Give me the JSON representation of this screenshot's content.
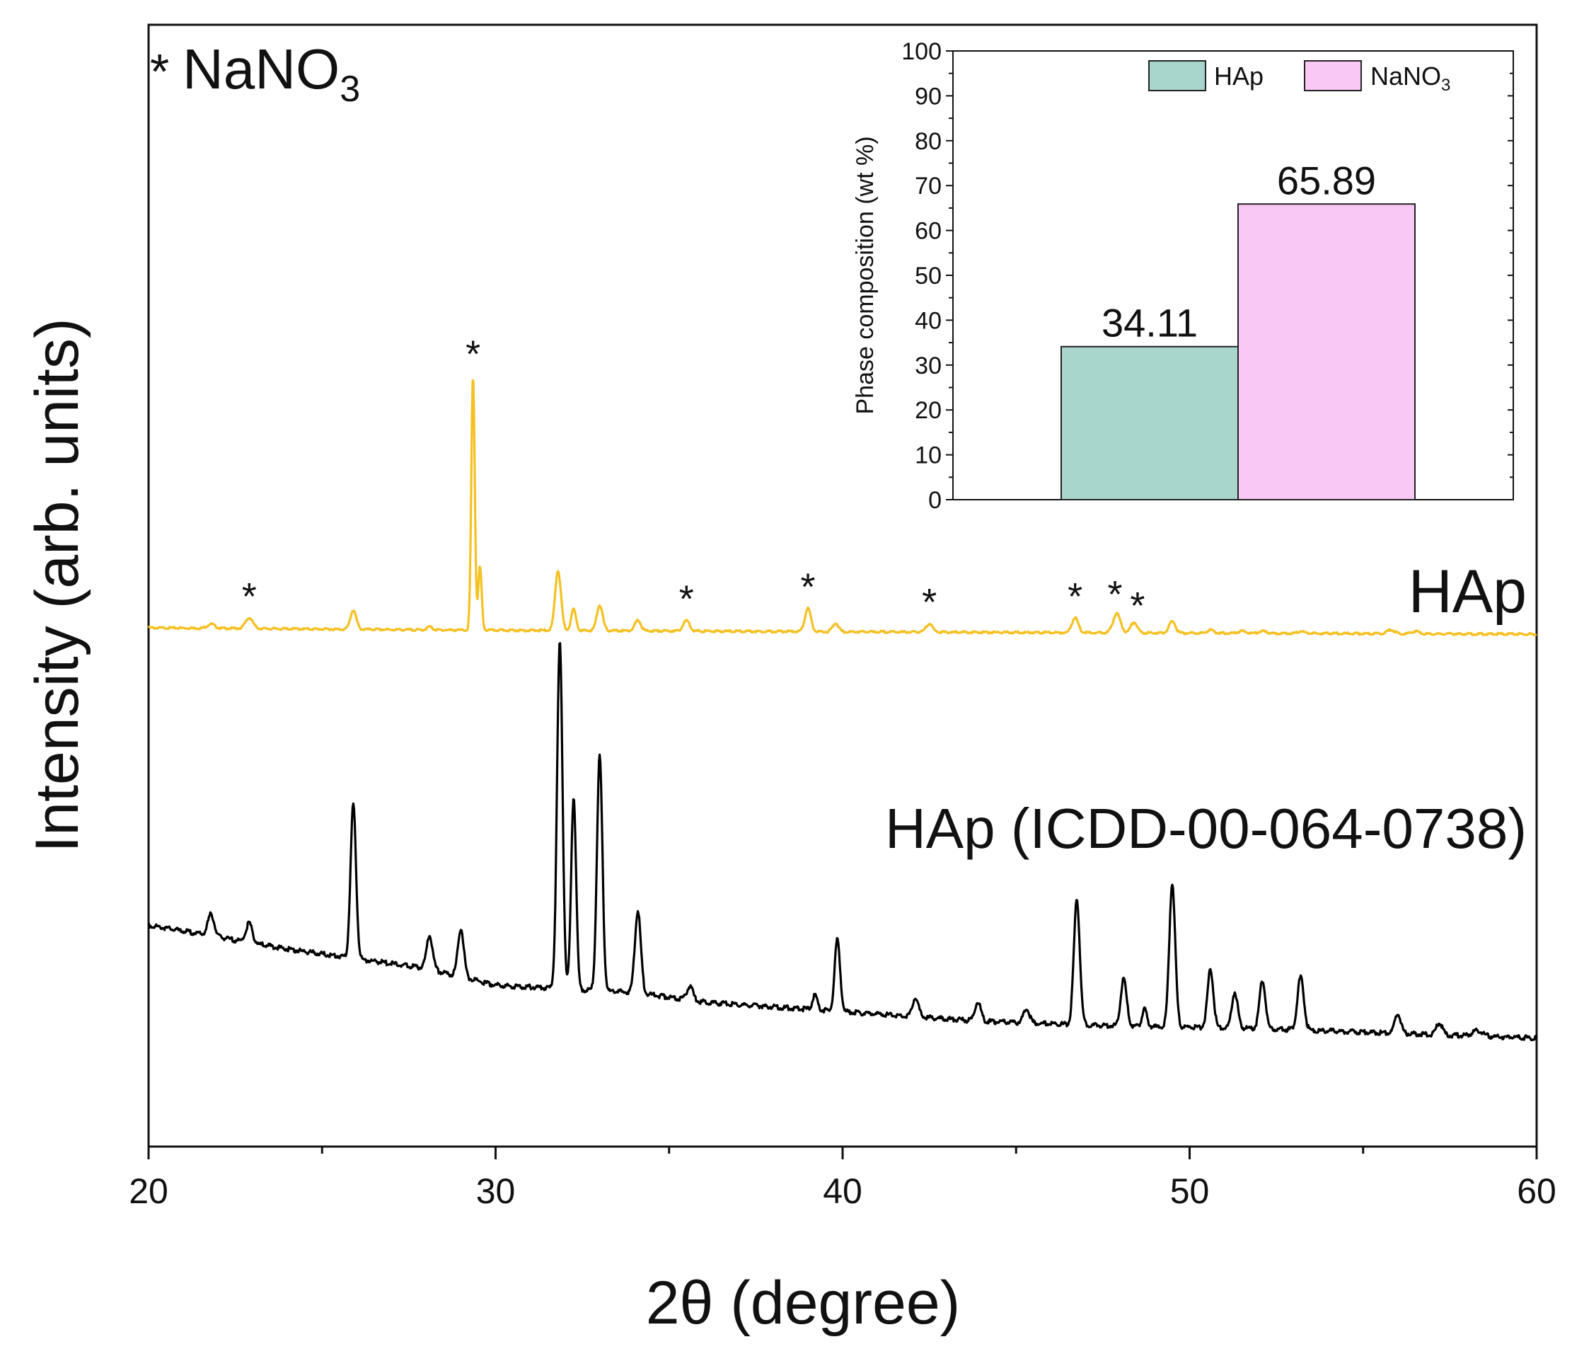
{
  "chart_data": [
    {
      "type": "line",
      "xlabel": "2θ (degree)",
      "ylabel": "Intensity (arb. units)",
      "xlim": [
        20,
        60
      ],
      "x_ticks": [
        20,
        30,
        40,
        50,
        60
      ],
      "y_ticks_shown": false,
      "legend_note": {
        "marker": "*",
        "text_main": "NaNO",
        "text_sub": "3"
      },
      "colors": {
        "HAp": "#f5c021",
        "HAp_ref": "#000000"
      },
      "series": [
        {
          "name": "HAp",
          "color": "#f5c021",
          "baseline": [
            [
              20,
              0.0
            ],
            [
              28,
              -0.1
            ],
            [
              35,
              -0.15
            ],
            [
              42,
              -0.2
            ],
            [
              50,
              -0.25
            ],
            [
              60,
              -0.3
            ]
          ],
          "peaks": [
            {
              "x": 21.8,
              "h": 0.2,
              "w": 0.15
            },
            {
              "x": 22.9,
              "h": 0.5,
              "w": 0.15
            },
            {
              "x": 25.9,
              "h": 0.9,
              "w": 0.12
            },
            {
              "x": 28.1,
              "h": 0.15,
              "w": 0.1
            },
            {
              "x": 29.35,
              "h": 12.0,
              "w": 0.07
            },
            {
              "x": 29.55,
              "h": 3.0,
              "w": 0.07
            },
            {
              "x": 31.8,
              "h": 2.8,
              "w": 0.12
            },
            {
              "x": 32.25,
              "h": 1.0,
              "w": 0.1
            },
            {
              "x": 33.0,
              "h": 1.2,
              "w": 0.12
            },
            {
              "x": 34.1,
              "h": 0.5,
              "w": 0.12
            },
            {
              "x": 35.5,
              "h": 0.5,
              "w": 0.13
            },
            {
              "x": 39.0,
              "h": 1.1,
              "w": 0.12
            },
            {
              "x": 39.8,
              "h": 0.4,
              "w": 0.12
            },
            {
              "x": 42.5,
              "h": 0.4,
              "w": 0.13
            },
            {
              "x": 46.7,
              "h": 0.7,
              "w": 0.13
            },
            {
              "x": 47.9,
              "h": 0.9,
              "w": 0.15
            },
            {
              "x": 48.4,
              "h": 0.5,
              "w": 0.13
            },
            {
              "x": 49.5,
              "h": 0.55,
              "w": 0.13
            },
            {
              "x": 50.6,
              "h": 0.15,
              "w": 0.15
            },
            {
              "x": 51.5,
              "h": 0.1,
              "w": 0.15
            },
            {
              "x": 52.1,
              "h": 0.1,
              "w": 0.15
            },
            {
              "x": 53.2,
              "h": 0.1,
              "w": 0.15
            },
            {
              "x": 55.8,
              "h": 0.18,
              "w": 0.15
            },
            {
              "x": 56.5,
              "h": 0.12,
              "w": 0.15
            }
          ],
          "label": "HAp",
          "markers_at": [
            22.9,
            29.35,
            35.5,
            39.0,
            42.5,
            46.7,
            47.85,
            48.5
          ]
        },
        {
          "name": "HAp (ICDD-00-064-0738)",
          "color": "#000000",
          "baseline": [
            [
              20,
              0.0
            ],
            [
              24,
              -0.5
            ],
            [
              26,
              -0.7
            ],
            [
              28,
              -0.9
            ],
            [
              30,
              -1.25
            ],
            [
              34,
              -1.4
            ],
            [
              36,
              -1.6
            ],
            [
              40,
              -1.8
            ],
            [
              44,
              -2.0
            ],
            [
              48,
              -2.1
            ],
            [
              52,
              -2.15
            ],
            [
              56,
              -2.25
            ],
            [
              60,
              -2.35
            ]
          ],
          "peaks": [
            {
              "x": 21.8,
              "h": 0.45,
              "w": 0.13
            },
            {
              "x": 22.9,
              "h": 0.4,
              "w": 0.13
            },
            {
              "x": 25.9,
              "h": 3.2,
              "w": 0.11
            },
            {
              "x": 28.1,
              "h": 0.7,
              "w": 0.12
            },
            {
              "x": 29.0,
              "h": 1.0,
              "w": 0.12
            },
            {
              "x": 31.85,
              "h": 7.2,
              "w": 0.11
            },
            {
              "x": 32.25,
              "h": 4.0,
              "w": 0.1
            },
            {
              "x": 33.0,
              "h": 4.9,
              "w": 0.11
            },
            {
              "x": 34.1,
              "h": 1.7,
              "w": 0.12
            },
            {
              "x": 35.6,
              "h": 0.3,
              "w": 0.12
            },
            {
              "x": 39.2,
              "h": 0.3,
              "w": 0.1
            },
            {
              "x": 39.85,
              "h": 1.5,
              "w": 0.11
            },
            {
              "x": 42.1,
              "h": 0.4,
              "w": 0.12
            },
            {
              "x": 43.9,
              "h": 0.4,
              "w": 0.12
            },
            {
              "x": 45.3,
              "h": 0.3,
              "w": 0.12
            },
            {
              "x": 46.75,
              "h": 2.6,
              "w": 0.12
            },
            {
              "x": 48.1,
              "h": 1.0,
              "w": 0.12
            },
            {
              "x": 48.7,
              "h": 0.35,
              "w": 0.1
            },
            {
              "x": 49.5,
              "h": 3.0,
              "w": 0.12
            },
            {
              "x": 50.6,
              "h": 1.2,
              "w": 0.12
            },
            {
              "x": 51.3,
              "h": 0.75,
              "w": 0.12
            },
            {
              "x": 52.1,
              "h": 1.0,
              "w": 0.12
            },
            {
              "x": 53.2,
              "h": 1.1,
              "w": 0.13
            },
            {
              "x": 56.0,
              "h": 0.4,
              "w": 0.12
            },
            {
              "x": 57.2,
              "h": 0.25,
              "w": 0.12
            },
            {
              "x": 58.3,
              "h": 0.12,
              "w": 0.2
            }
          ],
          "label": "HAp (ICDD-00-064-0738)"
        }
      ]
    },
    {
      "type": "bar",
      "inset": true,
      "ylabel": "Phase composition (wt %)",
      "ylim": [
        0,
        100
      ],
      "y_ticks": [
        0,
        10,
        20,
        30,
        40,
        50,
        60,
        70,
        80,
        90,
        100
      ],
      "categories": [
        "HAp",
        "NaNO3"
      ],
      "values": [
        34.11,
        65.89
      ],
      "value_labels": [
        "34.11",
        "65.89"
      ],
      "colors": [
        "#a8d5cc",
        "#f9c8f4"
      ],
      "legend": [
        {
          "text": "HAp",
          "sub": "",
          "color": "#a8d5cc"
        },
        {
          "text": "NaNO",
          "sub": "3",
          "color": "#f9c8f4"
        }
      ]
    }
  ]
}
